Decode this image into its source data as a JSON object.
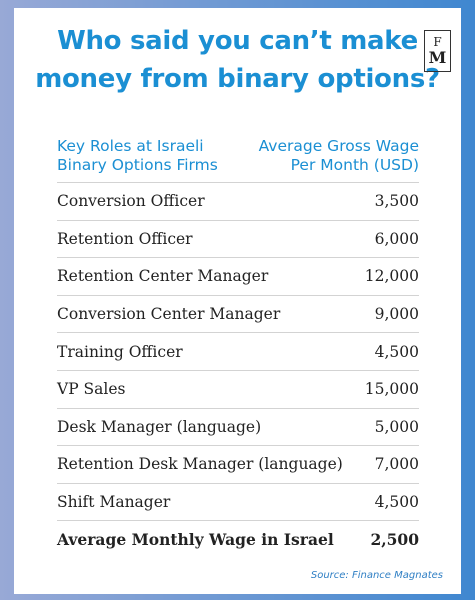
{
  "title": "Who said you can’t make money from binary options?",
  "title_lines": [
    "Who said you can’t make",
    "money from binary options?"
  ],
  "logo": {
    "top": "F",
    "bottom": "M"
  },
  "header": {
    "left_line1": "Key Roles at Israeli",
    "left_line2": "Binary Options Firms",
    "right_line1": "Average Gross Wage",
    "right_line2": "Per Month (USD)"
  },
  "source": "Source: Finance Magnates",
  "colors": {
    "accent": "#1b8fd3",
    "text": "#222222",
    "background_left": "#98a9d6",
    "background_right": "#3f87d0"
  },
  "chart_data": {
    "type": "table",
    "title": "Who said you can’t make money from binary options?",
    "columns": [
      "Key Roles at Israeli Binary Options Firms",
      "Average Gross Wage Per Month (USD)"
    ],
    "rows": [
      {
        "role": "Conversion Officer",
        "wage": "3,500"
      },
      {
        "role": "Retention Officer",
        "wage": "6,000"
      },
      {
        "role": "Retention Center Manager",
        "wage": "12,000"
      },
      {
        "role": "Conversion Center Manager",
        "wage": "9,000"
      },
      {
        "role": "Training Officer",
        "wage": "4,500"
      },
      {
        "role": "VP Sales",
        "wage": "15,000"
      },
      {
        "role": "Desk Manager (language)",
        "wage": "5,000"
      },
      {
        "role": "Retention Desk Manager (language)",
        "wage": "7,000"
      },
      {
        "role": "Shift Manager",
        "wage": "4,500"
      }
    ],
    "total": {
      "role": "Average Monthly Wage in Israel",
      "wage": "2,500"
    }
  }
}
